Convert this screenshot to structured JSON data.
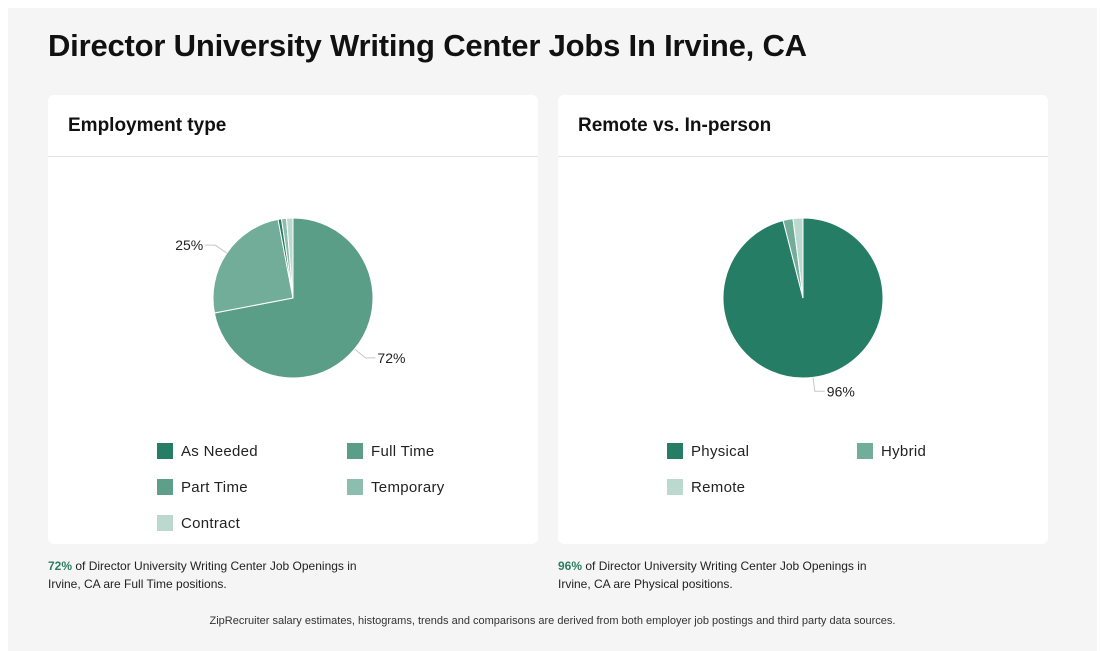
{
  "page": {
    "title": "Director University Writing Center Jobs In Irvine, CA",
    "footer": "ZipRecruiter salary estimates, histograms, trends and comparisons are derived from both employer job postings and third party data sources."
  },
  "employment_card": {
    "title": "Employment type",
    "note_pct": "72%",
    "note_text": " of Director University Writing Center Job Openings in Irvine, CA are Full Time positions."
  },
  "remote_card": {
    "title": "Remote vs. In-person",
    "note_pct": "96%",
    "note_text": " of Director University Writing Center Job Openings in Irvine, CA are Physical positions."
  },
  "chart_data": [
    {
      "type": "pie",
      "title": "Employment type",
      "slices": [
        {
          "name": "Full Time",
          "value": 72,
          "label": "72%",
          "color": "#5a9e88"
        },
        {
          "name": "Part Time",
          "value": 25,
          "label": "25%",
          "color": "#72ad99"
        },
        {
          "name": "As Needed",
          "value": 0.7,
          "label": "",
          "color": "#267d66"
        },
        {
          "name": "Temporary",
          "value": 1.0,
          "label": "",
          "color": "#8dbdad"
        },
        {
          "name": "Contract",
          "value": 1.3,
          "label": "",
          "color": "#bcd9cf"
        }
      ],
      "legend": [
        {
          "name": "As Needed",
          "color": "#267d66"
        },
        {
          "name": "Full Time",
          "color": "#5a9e88"
        },
        {
          "name": "Part Time",
          "color": "#5e9f89"
        },
        {
          "name": "Temporary",
          "color": "#8dbdad"
        },
        {
          "name": "Contract",
          "color": "#bcd9cf"
        }
      ],
      "legend_placement": "bottom"
    },
    {
      "type": "pie",
      "title": "Remote vs. In-person",
      "slices": [
        {
          "name": "Physical",
          "value": 96,
          "label": "96%",
          "color": "#267d66"
        },
        {
          "name": "Hybrid",
          "value": 2,
          "label": "",
          "color": "#72ad99"
        },
        {
          "name": "Remote",
          "value": 2,
          "label": "",
          "color": "#bcd9cf"
        }
      ],
      "legend": [
        {
          "name": "Physical",
          "color": "#267d66"
        },
        {
          "name": "Hybrid",
          "color": "#72ad99"
        },
        {
          "name": "Remote",
          "color": "#bcd9cf"
        }
      ],
      "legend_placement": "bottom"
    }
  ]
}
